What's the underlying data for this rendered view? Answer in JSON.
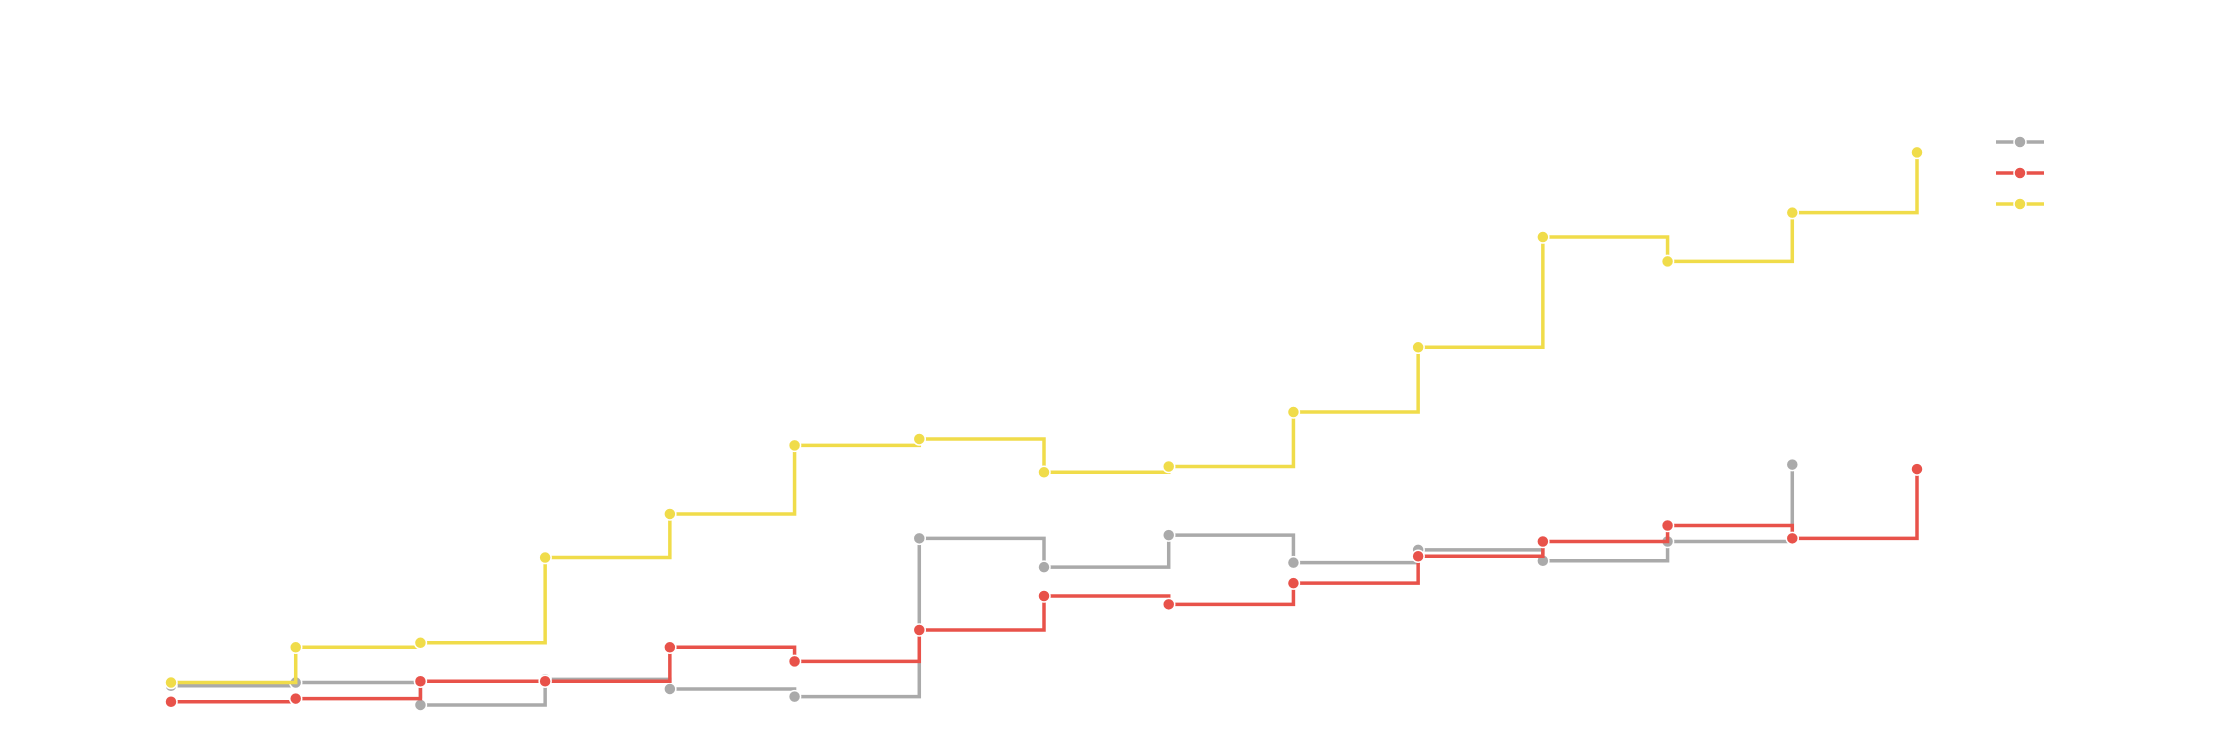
{
  "chart_data": {
    "type": "line",
    "step": "post",
    "title": "",
    "xlabel": "",
    "ylabel": "",
    "x": [
      1,
      2,
      3,
      4,
      5,
      6,
      7,
      8,
      9,
      10,
      11,
      12,
      13,
      14,
      15
    ],
    "xlim": [
      0.1,
      17.0
    ],
    "ylim": [
      0,
      100
    ],
    "grid": false,
    "axes_visible": false,
    "legend_position": "top-right",
    "series": [
      {
        "color": "#aaaaaa",
        "values": [
          5.5,
          6.0,
          2.5,
          6.5,
          5.0,
          3.8,
          28.5,
          24.0,
          29.0,
          24.7,
          26.7,
          25.0,
          28.0,
          40.0,
          null
        ]
      },
      {
        "color": "#e8524a",
        "values": [
          3.0,
          3.5,
          6.2,
          6.2,
          11.5,
          9.3,
          14.2,
          19.5,
          18.2,
          21.5,
          25.7,
          28.0,
          30.5,
          28.5,
          39.3
        ]
      },
      {
        "color": "#f0dc4a",
        "values": [
          6.0,
          11.5,
          12.2,
          25.5,
          32.3,
          43.0,
          44.0,
          38.8,
          39.7,
          48.2,
          58.3,
          75.5,
          71.7,
          79.3,
          88.7
        ]
      }
    ]
  }
}
